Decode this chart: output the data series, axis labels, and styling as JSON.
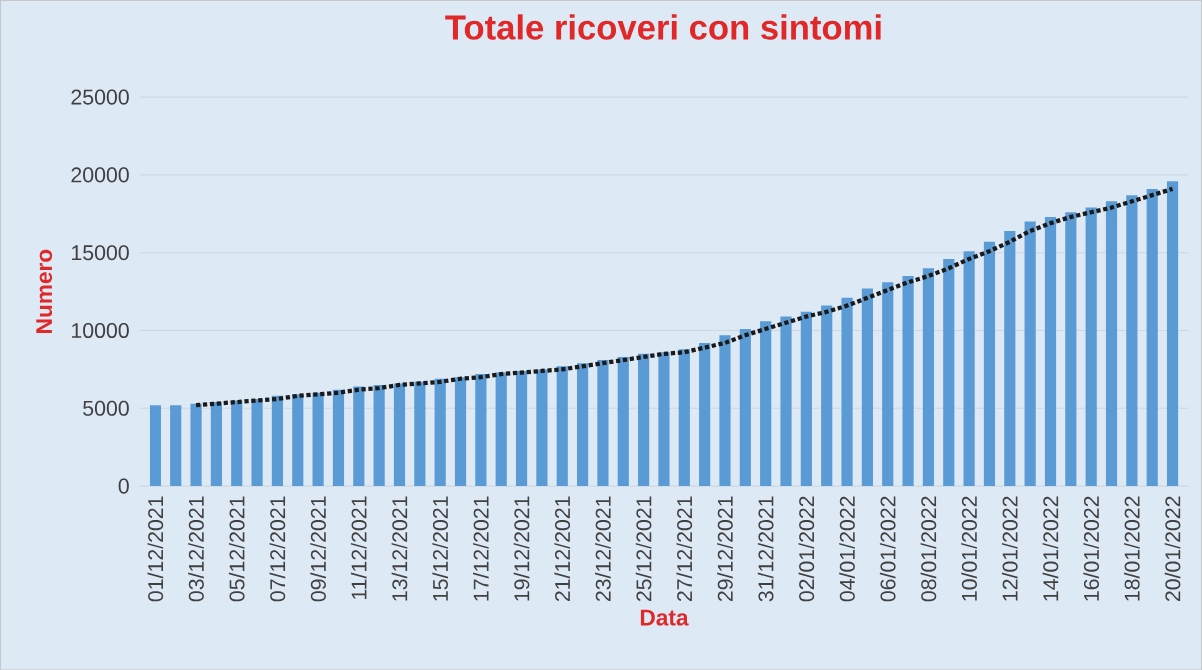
{
  "chart_data": {
    "type": "bar",
    "title": "Totale ricoveri con sintomi",
    "xlabel": "Data",
    "ylabel": "Numero",
    "categories": [
      "01/12/2021",
      null,
      "03/12/2021",
      null,
      "05/12/2021",
      null,
      "07/12/2021",
      null,
      "09/12/2021",
      null,
      "11/12/2021",
      null,
      "13/12/2021",
      null,
      "15/12/2021",
      null,
      "17/12/2021",
      null,
      "19/12/2021",
      null,
      "21/12/2021",
      null,
      "23/12/2021",
      null,
      "25/12/2021",
      null,
      "27/12/2021",
      null,
      "29/12/2021",
      null,
      "31/12/2021",
      null,
      "02/01/2022",
      null,
      "04/01/2022",
      null,
      "06/01/2022",
      null,
      "08/01/2022",
      null,
      "10/01/2022",
      null,
      "12/01/2022",
      null,
      "14/01/2022",
      null,
      "16/01/2022",
      null,
      "18/01/2022",
      null,
      "20/01/2022"
    ],
    "series": [
      {
        "color": "#5b9bd5",
        "values": [
          5200,
          5200,
          5300,
          5400,
          5500,
          5600,
          5800,
          5900,
          6000,
          6200,
          6400,
          6500,
          6600,
          6700,
          6900,
          7000,
          7200,
          7300,
          7400,
          7500,
          7700,
          7900,
          8100,
          8300,
          8500,
          8600,
          8800,
          9200,
          9700,
          10100,
          10600,
          10900,
          11200,
          11600,
          12100,
          12700,
          13100,
          13500,
          14000,
          14600,
          15100,
          15700,
          16400,
          17000,
          17300,
          17600,
          17900,
          18300,
          18700,
          19100,
          19600
        ]
      },
      {
        "type": "line",
        "color": "#1a1a1a",
        "line_style": "dotted",
        "values": [
          null,
          null,
          5200,
          5300,
          5400,
          5500,
          5600,
          5800,
          5900,
          6000,
          6200,
          6300,
          6500,
          6600,
          6700,
          6900,
          7000,
          7200,
          7300,
          7400,
          7500,
          7700,
          7900,
          8100,
          8300,
          8500,
          8600,
          8900,
          9200,
          9700,
          10100,
          10500,
          10900,
          11200,
          11600,
          12100,
          12600,
          13100,
          13500,
          14000,
          14600,
          15100,
          15700,
          16400,
          16900,
          17300,
          17600,
          17900,
          18300,
          18700,
          19100
        ]
      }
    ],
    "ylim": [
      0,
      25000
    ],
    "yticks": [
      0,
      5000,
      10000,
      15000,
      20000,
      25000
    ],
    "grid": "y"
  }
}
